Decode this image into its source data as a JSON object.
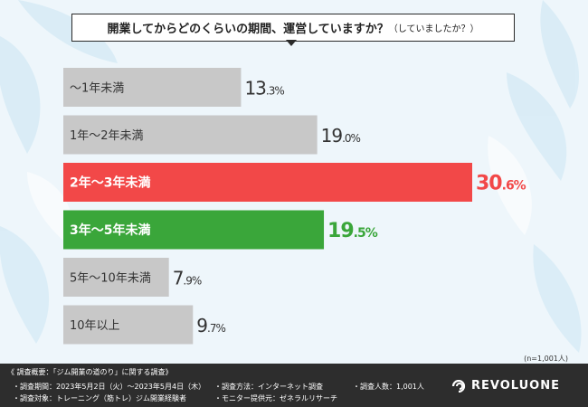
{
  "title": {
    "main": "開業してからどのくらいの期間、運営していますか？",
    "sub": "（していましたか？）"
  },
  "chart_data": {
    "type": "bar",
    "orientation": "horizontal",
    "categories": [
      "～1年未満",
      "1年～2年未満",
      "2年～3年未満",
      "3年～5年未満",
      "5年～10年未満",
      "10年以上"
    ],
    "values": [
      13.3,
      19.0,
      30.6,
      19.5,
      7.9,
      9.7
    ],
    "value_labels": [
      {
        "int": "13",
        "dec": ".3%"
      },
      {
        "int": "19",
        "dec": ".0%"
      },
      {
        "int": "30",
        "dec": ".6%"
      },
      {
        "int": "19",
        "dec": ".5%"
      },
      {
        "int": "7",
        "dec": ".9%"
      },
      {
        "int": "9",
        "dec": ".7%"
      }
    ],
    "colors": [
      "#c8c8c8",
      "#c8c8c8",
      "#f24848",
      "#3aa63a",
      "#c8c8c8",
      "#c8c8c8"
    ],
    "label_colors": [
      "#333333",
      "#333333",
      "#ffffff",
      "#ffffff",
      "#333333",
      "#333333"
    ],
    "value_colors": [
      "#333333",
      "#333333",
      "#f24848",
      "#3aa63a",
      "#333333",
      "#333333"
    ],
    "xlim": [
      0,
      30.6
    ],
    "grid": false,
    "legend": "none"
  },
  "sample_note": "(n=1,001人)",
  "footer": {
    "heading": "《 調査概要：「ジム開業の道のり」に関する調査》",
    "period": "・調査期間：2023年5月2日（火）～2023年5月4日（木）",
    "target": "・調査対象：トレーニング（筋トレ）ジム開業経験者",
    "method": "・調査方法：インターネット調査",
    "provider": "・モニター提供元：ゼネラルリサーチ",
    "count": "・調査人数：1,001人",
    "logo": "REVOLUONE"
  }
}
